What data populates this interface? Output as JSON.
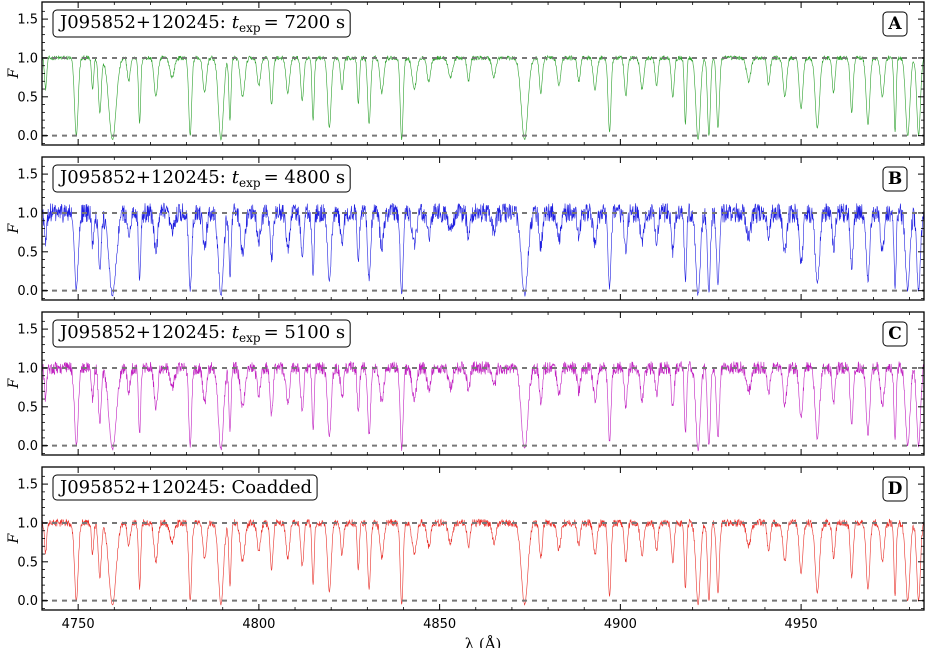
{
  "figure": {
    "xlabel": "λ (Å)",
    "ylabel": "F",
    "x_ticks": [
      4750,
      4800,
      4850,
      4900,
      4950
    ],
    "y_ticks": [
      0.0,
      0.5,
      1.0,
      1.5
    ]
  },
  "chart_data": [
    {
      "type": "line",
      "panel": "A",
      "tag": "A",
      "title": "J095852+120245: t_exp = 7200 s",
      "title_main": "J095852+120245:",
      "title_t": "t",
      "title_sub": "exp",
      "title_value": "= 7200 s",
      "color": "#2ca02c",
      "noise": 0.02,
      "xlim": [
        4740,
        4984
      ],
      "ylim": [
        -0.12,
        1.72
      ],
      "xlabel": "λ (Å)",
      "ylabel": "F",
      "reference_lines": [
        0.0,
        1.0
      ],
      "grid": false,
      "series": [
        {
          "name": "",
          "x": [
            4740,
            4984
          ]
        }
      ]
    },
    {
      "type": "line",
      "panel": "B",
      "tag": "B",
      "title": "J095852+120245: t_exp = 4800 s",
      "title_main": "J095852+120245:",
      "title_t": "t",
      "title_sub": "exp",
      "title_value": "= 4800 s",
      "color": "#1f1fe0",
      "noise": 0.09,
      "xlim": [
        4740,
        4984
      ],
      "ylim": [
        -0.12,
        1.72
      ],
      "xlabel": "λ (Å)",
      "ylabel": "F",
      "reference_lines": [
        0.0,
        1.0
      ],
      "grid": false,
      "series": [
        {
          "name": "",
          "x": [
            4740,
            4984
          ]
        }
      ]
    },
    {
      "type": "line",
      "panel": "C",
      "tag": "C",
      "title": "J095852+120245: t_exp = 5100 s",
      "title_main": "J095852+120245:",
      "title_t": "t",
      "title_sub": "exp",
      "title_value": "= 5100 s",
      "color": "#c020c0",
      "noise": 0.06,
      "xlim": [
        4740,
        4984
      ],
      "ylim": [
        -0.12,
        1.72
      ],
      "xlabel": "λ (Å)",
      "ylabel": "F",
      "reference_lines": [
        0.0,
        1.0
      ],
      "grid": false,
      "series": [
        {
          "name": "",
          "x": [
            4740,
            4984
          ]
        }
      ]
    },
    {
      "type": "line",
      "panel": "D",
      "tag": "D",
      "title": "J095852+120245: Coadded",
      "title_main": "J095852+120245: Coadded",
      "title_t": "",
      "title_sub": "",
      "title_value": "",
      "color": "#e8302a",
      "noise": 0.035,
      "xlim": [
        4740,
        4984
      ],
      "ylim": [
        -0.12,
        1.72
      ],
      "xlabel": "λ (Å)",
      "ylabel": "F",
      "reference_lines": [
        0.0,
        1.0
      ],
      "grid": false,
      "series": [
        {
          "name": "",
          "x": [
            4740,
            4984
          ]
        }
      ]
    }
  ],
  "absorption_lines": [
    [
      4741.0,
      0.4,
      0.3
    ],
    [
      4749.5,
      1.0,
      0.5
    ],
    [
      4754.0,
      0.4,
      0.3
    ],
    [
      4756.0,
      0.7,
      0.4
    ],
    [
      4759.5,
      1.05,
      1.0
    ],
    [
      4764.0,
      0.3,
      0.4
    ],
    [
      4767.0,
      0.85,
      0.3
    ],
    [
      4771.5,
      0.5,
      0.5
    ],
    [
      4776.0,
      0.25,
      0.6
    ],
    [
      4781.0,
      1.0,
      0.4
    ],
    [
      4785.0,
      0.45,
      0.5
    ],
    [
      4789.5,
      1.05,
      0.7
    ],
    [
      4792.0,
      0.8,
      0.3
    ],
    [
      4795.5,
      0.5,
      0.6
    ],
    [
      4800.0,
      0.35,
      0.5
    ],
    [
      4803.5,
      0.6,
      0.4
    ],
    [
      4808.0,
      0.45,
      0.5
    ],
    [
      4812.0,
      0.55,
      0.4
    ],
    [
      4815.0,
      0.8,
      0.3
    ],
    [
      4819.5,
      0.9,
      0.5
    ],
    [
      4823.0,
      0.4,
      0.4
    ],
    [
      4827.5,
      0.6,
      0.3
    ],
    [
      4830.5,
      0.85,
      0.4
    ],
    [
      4834.0,
      0.45,
      0.5
    ],
    [
      4839.5,
      1.05,
      0.4
    ],
    [
      4843.0,
      0.4,
      0.6
    ],
    [
      4847.0,
      0.3,
      0.5
    ],
    [
      4853.0,
      0.25,
      0.6
    ],
    [
      4858.0,
      0.3,
      0.4
    ],
    [
      4865.0,
      0.25,
      0.5
    ],
    [
      4873.5,
      1.05,
      0.9
    ],
    [
      4878.0,
      0.45,
      0.4
    ],
    [
      4883.0,
      0.35,
      0.5
    ],
    [
      4888.5,
      0.3,
      0.4
    ],
    [
      4893.0,
      0.4,
      0.5
    ],
    [
      4897.0,
      0.95,
      0.4
    ],
    [
      4901.5,
      0.5,
      0.4
    ],
    [
      4906.0,
      0.4,
      0.5
    ],
    [
      4910.0,
      0.35,
      0.4
    ],
    [
      4914.5,
      0.5,
      0.4
    ],
    [
      4918.0,
      0.85,
      0.3
    ],
    [
      4921.5,
      1.05,
      0.6
    ],
    [
      4924.5,
      1.0,
      0.4
    ],
    [
      4927.0,
      0.9,
      0.4
    ],
    [
      4935.5,
      0.3,
      0.6
    ],
    [
      4941.0,
      0.35,
      0.4
    ],
    [
      4945.5,
      0.5,
      0.5
    ],
    [
      4950.0,
      0.65,
      0.5
    ],
    [
      4954.5,
      0.9,
      0.6
    ],
    [
      4959.0,
      0.45,
      0.4
    ],
    [
      4964.0,
      0.7,
      0.4
    ],
    [
      4968.5,
      0.85,
      0.5
    ],
    [
      4972.5,
      0.5,
      0.5
    ],
    [
      4976.0,
      0.95,
      0.3
    ],
    [
      4979.5,
      1.0,
      0.6
    ],
    [
      4982.5,
      1.0,
      0.5
    ]
  ]
}
